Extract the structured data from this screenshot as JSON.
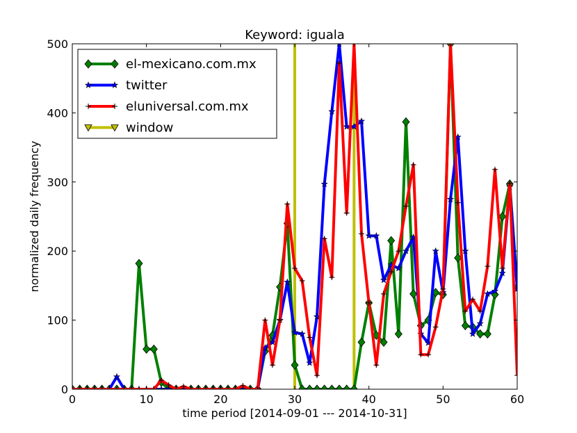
{
  "chart_data": {
    "type": "line",
    "title": "Keyword: iguala",
    "xlabel": "time period [2014-09-01 --- 2014-10-31]",
    "ylabel": "normalized daily frequency",
    "xlim": [
      0,
      60
    ],
    "ylim": [
      0,
      500
    ],
    "xticks": [
      0,
      10,
      20,
      30,
      40,
      50,
      60
    ],
    "yticks": [
      0,
      100,
      200,
      300,
      400,
      500
    ],
    "grid": false,
    "legend_position": "top-left",
    "series": [
      {
        "name": "el-mexicano.com.mx",
        "color": "#008000",
        "marker": "diamond",
        "x": [
          0,
          1,
          2,
          3,
          4,
          5,
          6,
          7,
          8,
          9,
          10,
          11,
          12,
          13,
          14,
          15,
          16,
          17,
          18,
          19,
          20,
          21,
          22,
          23,
          24,
          25,
          26,
          27,
          28,
          29,
          30,
          31,
          32,
          33,
          34,
          35,
          36,
          37,
          38,
          39,
          40,
          41,
          42,
          43,
          44,
          45,
          46,
          47,
          48,
          49,
          50,
          51,
          52,
          53,
          54,
          55,
          56,
          57,
          58,
          59,
          60
        ],
        "y": [
          0,
          0,
          0,
          0,
          0,
          0,
          0,
          0,
          0,
          182,
          58,
          58,
          10,
          0,
          0,
          0,
          0,
          0,
          0,
          0,
          0,
          0,
          0,
          0,
          0,
          0,
          55,
          78,
          148,
          240,
          35,
          0,
          0,
          0,
          0,
          0,
          0,
          0,
          0,
          68,
          125,
          78,
          68,
          215,
          80,
          387,
          138,
          92,
          100,
          140,
          137,
          500,
          190,
          92,
          90,
          80,
          80,
          137,
          250,
          297,
          148
        ]
      },
      {
        "name": "twitter",
        "color": "#0000ff",
        "marker": "star",
        "x": [
          0,
          1,
          2,
          3,
          4,
          5,
          6,
          7,
          8,
          9,
          10,
          11,
          12,
          13,
          14,
          15,
          16,
          17,
          18,
          19,
          20,
          21,
          22,
          23,
          24,
          25,
          26,
          27,
          28,
          29,
          30,
          31,
          32,
          33,
          34,
          35,
          36,
          37,
          38,
          39,
          40,
          41,
          42,
          43,
          44,
          45,
          46,
          47,
          48,
          49,
          50,
          51,
          52,
          53,
          54,
          55,
          56,
          57,
          58,
          59,
          60
        ],
        "y": [
          0,
          0,
          0,
          0,
          0,
          0,
          18,
          0,
          0,
          0,
          0,
          0,
          0,
          0,
          0,
          0,
          0,
          0,
          0,
          0,
          0,
          0,
          0,
          0,
          0,
          0,
          60,
          68,
          100,
          155,
          82,
          80,
          38,
          105,
          297,
          402,
          500,
          380,
          380,
          388,
          222,
          222,
          158,
          180,
          175,
          200,
          220,
          80,
          67,
          200,
          140,
          275,
          365,
          200,
          80,
          95,
          138,
          142,
          168,
          293,
          145
        ]
      },
      {
        "name": "eluniversal.com.mx",
        "color": "#ff0000",
        "marker": "plus",
        "x": [
          0,
          1,
          2,
          3,
          4,
          5,
          6,
          7,
          8,
          9,
          10,
          11,
          12,
          13,
          14,
          15,
          16,
          17,
          18,
          19,
          20,
          21,
          22,
          23,
          24,
          25,
          26,
          27,
          28,
          29,
          30,
          31,
          32,
          33,
          34,
          35,
          36,
          37,
          38,
          39,
          40,
          41,
          42,
          43,
          44,
          45,
          46,
          47,
          48,
          49,
          50,
          51,
          52,
          53,
          54,
          55,
          56,
          57,
          58,
          59,
          60
        ],
        "y": [
          0,
          0,
          0,
          0,
          0,
          0,
          0,
          0,
          0,
          0,
          0,
          0,
          13,
          6,
          0,
          4,
          0,
          0,
          0,
          0,
          0,
          0,
          0,
          5,
          0,
          0,
          100,
          35,
          100,
          268,
          175,
          157,
          75,
          20,
          218,
          162,
          472,
          255,
          500,
          225,
          125,
          35,
          138,
          170,
          200,
          265,
          325,
          50,
          50,
          90,
          145,
          500,
          270,
          113,
          130,
          113,
          178,
          318,
          175,
          298,
          20
        ]
      },
      {
        "name": "window",
        "color": "#bfbf00",
        "marker": "triangle-down",
        "x": [
          30,
          38
        ],
        "y": [
          0,
          500
        ]
      }
    ]
  }
}
